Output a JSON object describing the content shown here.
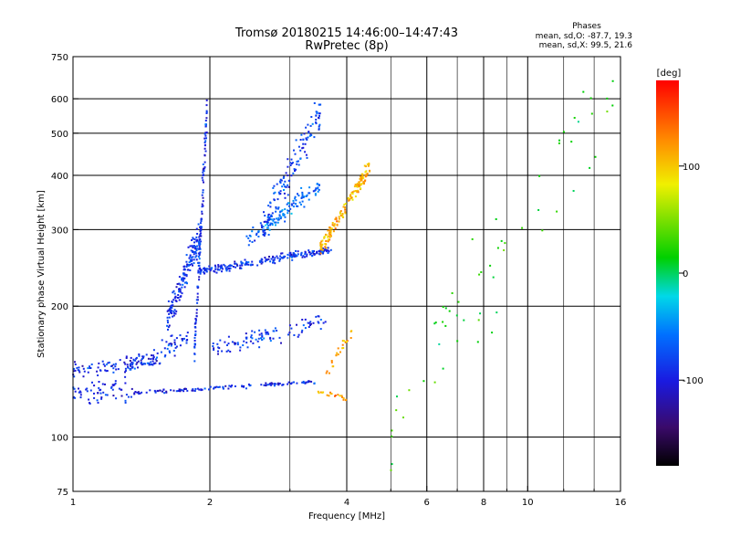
{
  "header": {
    "title_line1": "Tromsø 20180215 14:46:00–14:47:43",
    "title_line2": "RwPretec (8p)"
  },
  "stats": {
    "heading": "Phases",
    "line_o": "mean, sd,O: -87.7, 19.3",
    "line_x": "mean, sd,X:  99.5, 21.6"
  },
  "colorbar": {
    "label": "[deg]",
    "ticks": [
      "100",
      "0",
      "-100"
    ],
    "tick_values": [
      100,
      0,
      -100
    ],
    "range": [
      -180,
      180
    ]
  },
  "chart_data": {
    "type": "scatter",
    "title": "Tromsø 20180215 14:46:00–14:47:43 RwPretec (8p)",
    "xlabel": "Frequency [MHz]",
    "ylabel": "Stationary phase Virtual Height [km]",
    "x_scale": "log",
    "y_scale": "log",
    "xlim": [
      1,
      16
    ],
    "ylim": [
      75,
      750
    ],
    "x_ticks": [
      1,
      2,
      4,
      6,
      8,
      10,
      16
    ],
    "x_tick_labels": [
      "1",
      "2",
      "4",
      "6",
      "8",
      "10",
      "16"
    ],
    "y_ticks": [
      75,
      100,
      200,
      300,
      400,
      500,
      600,
      750
    ],
    "y_tick_labels": [
      "75",
      "100",
      "200",
      "300",
      "400",
      "500",
      "600",
      "750"
    ],
    "grid": true,
    "color_variable": "Phase [deg]",
    "traces": [
      {
        "f_start": 1.0,
        "f_end": 1.35,
        "h_start": 127,
        "h_end": 127,
        "spread": 0.09,
        "phase": -95,
        "n": 60
      },
      {
        "f_start": 1.0,
        "f_end": 1.55,
        "h_start": 142,
        "h_end": 150,
        "spread": 0.06,
        "phase": -92,
        "n": 90
      },
      {
        "f_start": 1.3,
        "f_end": 1.8,
        "h_start": 145,
        "h_end": 170,
        "spread": 0.08,
        "phase": -90,
        "n": 70
      },
      {
        "f_start": 1.35,
        "f_end": 3.4,
        "h_start": 126,
        "h_end": 134,
        "spread": 0.015,
        "phase": -92,
        "n": 120
      },
      {
        "f_start": 3.4,
        "f_end": 4.0,
        "h_start": 128,
        "h_end": 122,
        "spread": 0.02,
        "phase": 115,
        "n": 20
      },
      {
        "f_start": 1.6,
        "f_end": 1.92,
        "h_start": 180,
        "h_end": 300,
        "spread": 0.12,
        "phase": -88,
        "n": 180
      },
      {
        "f_start": 1.85,
        "f_end": 1.97,
        "h_start": 160,
        "h_end": 560,
        "spread": 0.15,
        "phase": -90,
        "n": 120
      },
      {
        "f_start": 1.9,
        "f_end": 3.7,
        "h_start": 240,
        "h_end": 270,
        "spread": 0.03,
        "phase": -85,
        "n": 220
      },
      {
        "f_start": 2.0,
        "f_end": 3.6,
        "h_start": 160,
        "h_end": 185,
        "spread": 0.07,
        "phase": -85,
        "n": 100
      },
      {
        "f_start": 2.4,
        "f_end": 3.5,
        "h_start": 280,
        "h_end": 380,
        "spread": 0.07,
        "phase": -60,
        "n": 120
      },
      {
        "f_start": 2.6,
        "f_end": 3.5,
        "h_start": 300,
        "h_end": 560,
        "spread": 0.13,
        "phase": -80,
        "n": 140
      },
      {
        "f_start": 3.5,
        "f_end": 4.5,
        "h_start": 270,
        "h_end": 420,
        "spread": 0.06,
        "phase": 110,
        "n": 160
      },
      {
        "f_start": 3.6,
        "f_end": 4.1,
        "h_start": 140,
        "h_end": 175,
        "spread": 0.05,
        "phase": 115,
        "n": 25
      },
      {
        "f_start": 5.0,
        "f_end": 15.5,
        "h_start": 110,
        "h_end": 620,
        "spread": 0.4,
        "phase": 20,
        "n": 60
      }
    ]
  }
}
